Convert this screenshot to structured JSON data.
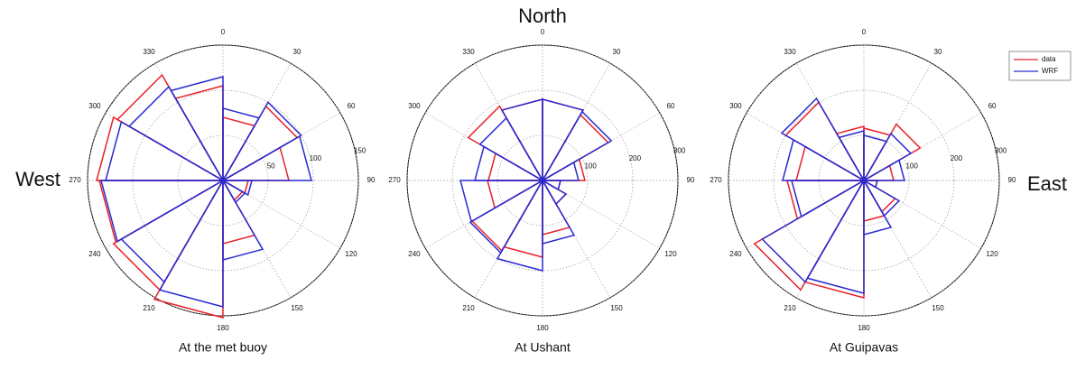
{
  "labels": {
    "north": "North",
    "west": "West",
    "east": "East"
  },
  "chart_data": [
    {
      "type": "rose",
      "title": "At the met buoy",
      "angles": [
        0,
        30,
        60,
        90,
        120,
        150,
        180,
        210,
        240,
        270,
        300,
        330
      ],
      "rlim": [
        0,
        150
      ],
      "rticks": [
        50,
        100,
        150
      ],
      "series": [
        {
          "color": "#e8202a",
          "values": [
            70,
            95,
            73,
            28,
            25,
            70,
            152,
            140,
            137,
            140,
            135,
            105
          ]
        },
        {
          "color": "#2a2ad0",
          "values": [
            80,
            100,
            98,
            32,
            28,
            88,
            140,
            130,
            135,
            130,
            120,
            115
          ]
        }
      ]
    },
    {
      "type": "rose",
      "title": "At Ushant",
      "angles": [
        0,
        30,
        60,
        90,
        120,
        150,
        180,
        210,
        240,
        270,
        300,
        330
      ],
      "rlim": [
        0,
        300
      ],
      "rticks": [
        100,
        200,
        300
      ],
      "series": [
        {
          "color": "#e8202a",
          "values": [
            180,
            168,
            94,
            40,
            60,
            120,
            170,
            180,
            122,
            120,
            190,
            180
          ]
        },
        {
          "color": "#2a2ad0",
          "values": [
            180,
            176,
            80,
            40,
            60,
            140,
            200,
            185,
            182,
            150,
            160,
            180
          ]
        }
      ]
    },
    {
      "type": "rose",
      "title": "At Guipavas",
      "angles": [
        0,
        30,
        60,
        90,
        120,
        150,
        180,
        210,
        240,
        270,
        300,
        330
      ],
      "rlim": [
        0,
        300
      ],
      "rticks": [
        100,
        200,
        300
      ],
      "legend": "upper right",
      "series": [
        {
          "name": "data",
          "color": "#e8202a",
          "values": [
            116,
            144,
            66,
            30,
            80,
            90,
            260,
            280,
            170,
            150,
            200,
            120
          ]
        },
        {
          "name": "WRF",
          "color": "#2a2ad0",
          "values": [
            100,
            120,
            90,
            30,
            90,
            120,
            250,
            260,
            160,
            180,
            210,
            110
          ]
        }
      ]
    }
  ]
}
